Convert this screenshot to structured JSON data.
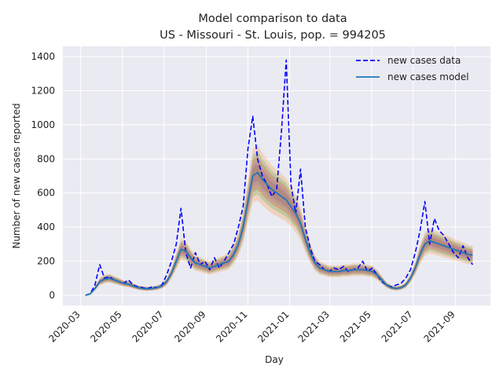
{
  "chart_data": {
    "type": "line",
    "title": "Model comparison to data",
    "subtitle": "US - Missouri - St. Louis, pop. = 994205",
    "xlabel": "Day",
    "ylabel": "Number of new cases reported",
    "x_ticks": [
      "2020-03",
      "2020-05",
      "2020-07",
      "2020-09",
      "2020-11",
      "2021-01",
      "2021-03",
      "2021-05",
      "2021-07",
      "2021-09"
    ],
    "y_ticks": [
      0,
      200,
      400,
      600,
      800,
      1000,
      1200,
      1400
    ],
    "xlim": [
      "2020-02-04",
      "2021-10-22"
    ],
    "ylim": [
      -60,
      1460
    ],
    "grid": true,
    "legend_position": "top-right",
    "colors": {
      "background": "#eaeaf2",
      "grid": "#ffffff",
      "data_line": "#0000ff",
      "model_line": "#1f77b4",
      "band_colors": [
        "#ff7f0e",
        "#2ca02c",
        "#d62728",
        "#9467bd",
        "#8c564b"
      ]
    },
    "series": [
      {
        "name": "new cases data",
        "style": "dashed",
        "x": [
          "2020-03-08",
          "2020-03-15",
          "2020-03-22",
          "2020-03-29",
          "2020-04-05",
          "2020-04-12",
          "2020-04-19",
          "2020-04-26",
          "2020-05-03",
          "2020-05-10",
          "2020-05-17",
          "2020-05-24",
          "2020-05-31",
          "2020-06-07",
          "2020-06-14",
          "2020-06-21",
          "2020-06-28",
          "2020-07-05",
          "2020-07-12",
          "2020-07-19",
          "2020-07-26",
          "2020-08-02",
          "2020-08-09",
          "2020-08-16",
          "2020-08-23",
          "2020-08-30",
          "2020-09-06",
          "2020-09-13",
          "2020-09-20",
          "2020-09-27",
          "2020-10-04",
          "2020-10-11",
          "2020-10-18",
          "2020-10-25",
          "2020-11-01",
          "2020-11-08",
          "2020-11-15",
          "2020-11-22",
          "2020-11-29",
          "2020-12-06",
          "2020-12-13",
          "2020-12-20",
          "2020-12-27",
          "2021-01-03",
          "2021-01-10",
          "2021-01-17",
          "2021-01-24",
          "2021-01-31",
          "2021-02-07",
          "2021-02-14",
          "2021-02-21",
          "2021-02-28",
          "2021-03-07",
          "2021-03-14",
          "2021-03-21",
          "2021-03-28",
          "2021-04-04",
          "2021-04-11",
          "2021-04-18",
          "2021-04-25",
          "2021-05-02",
          "2021-05-09",
          "2021-05-16",
          "2021-05-23",
          "2021-05-30",
          "2021-06-06",
          "2021-06-13",
          "2021-06-20",
          "2021-06-27",
          "2021-07-04",
          "2021-07-11",
          "2021-07-18",
          "2021-07-25",
          "2021-08-01",
          "2021-08-08",
          "2021-08-15",
          "2021-08-22",
          "2021-08-29",
          "2021-09-05",
          "2021-09-12",
          "2021-09-19",
          "2021-09-26"
        ],
        "values": [
          0,
          10,
          60,
          180,
          100,
          110,
          90,
          80,
          70,
          90,
          60,
          50,
          45,
          40,
          50,
          45,
          60,
          120,
          200,
          300,
          510,
          250,
          160,
          250,
          180,
          200,
          150,
          220,
          160,
          200,
          250,
          300,
          400,
          520,
          860,
          1050,
          800,
          700,
          650,
          580,
          620,
          960,
          1380,
          650,
          480,
          740,
          400,
          280,
          200,
          180,
          150,
          140,
          160,
          150,
          170,
          140,
          150,
          160,
          200,
          140,
          160,
          120,
          80,
          60,
          50,
          60,
          70,
          100,
          150,
          250,
          380,
          550,
          300,
          450,
          380,
          350,
          300,
          250,
          220,
          290,
          220,
          180
        ]
      },
      {
        "name": "new cases model",
        "style": "solid",
        "x": [
          "2020-03-08",
          "2020-03-15",
          "2020-03-22",
          "2020-03-29",
          "2020-04-05",
          "2020-04-12",
          "2020-04-19",
          "2020-04-26",
          "2020-05-03",
          "2020-05-10",
          "2020-05-17",
          "2020-05-24",
          "2020-05-31",
          "2020-06-07",
          "2020-06-14",
          "2020-06-21",
          "2020-06-28",
          "2020-07-05",
          "2020-07-12",
          "2020-07-19",
          "2020-07-26",
          "2020-08-02",
          "2020-08-09",
          "2020-08-16",
          "2020-08-23",
          "2020-08-30",
          "2020-09-06",
          "2020-09-13",
          "2020-09-20",
          "2020-09-27",
          "2020-10-04",
          "2020-10-11",
          "2020-10-18",
          "2020-10-25",
          "2020-11-01",
          "2020-11-08",
          "2020-11-15",
          "2020-11-22",
          "2020-11-29",
          "2020-12-06",
          "2020-12-13",
          "2020-12-20",
          "2020-12-27",
          "2021-01-03",
          "2021-01-10",
          "2021-01-17",
          "2021-01-24",
          "2021-01-31",
          "2021-02-07",
          "2021-02-14",
          "2021-02-21",
          "2021-02-28",
          "2021-03-07",
          "2021-03-14",
          "2021-03-21",
          "2021-03-28",
          "2021-04-04",
          "2021-04-11",
          "2021-04-18",
          "2021-04-25",
          "2021-05-02",
          "2021-05-09",
          "2021-05-16",
          "2021-05-23",
          "2021-05-30",
          "2021-06-06",
          "2021-06-13",
          "2021-06-20",
          "2021-06-27",
          "2021-07-04",
          "2021-07-11",
          "2021-07-18",
          "2021-07-25",
          "2021-08-01",
          "2021-08-08",
          "2021-08-15",
          "2021-08-22",
          "2021-08-29",
          "2021-09-05",
          "2021-09-12",
          "2021-09-19",
          "2021-09-26"
        ],
        "values": [
          0,
          8,
          40,
          80,
          95,
          100,
          90,
          80,
          70,
          65,
          55,
          45,
          40,
          38,
          40,
          45,
          55,
          80,
          130,
          200,
          270,
          260,
          220,
          190,
          180,
          170,
          160,
          170,
          180,
          190,
          200,
          240,
          300,
          400,
          550,
          700,
          720,
          680,
          650,
          620,
          600,
          580,
          560,
          520,
          480,
          420,
          330,
          250,
          190,
          160,
          150,
          140,
          140,
          140,
          145,
          145,
          150,
          150,
          150,
          145,
          140,
          120,
          90,
          60,
          45,
          40,
          45,
          60,
          100,
          160,
          240,
          300,
          320,
          310,
          300,
          290,
          280,
          270,
          260,
          250,
          240,
          235
        ]
      }
    ]
  }
}
